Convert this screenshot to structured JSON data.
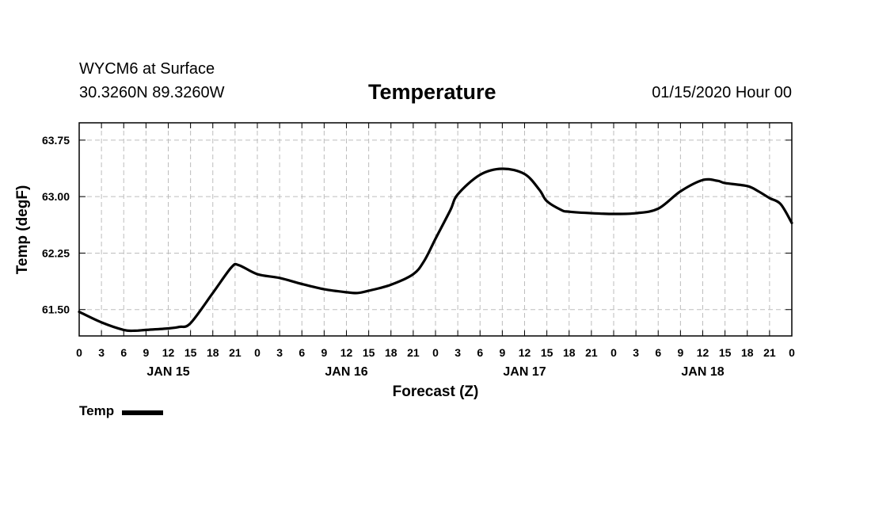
{
  "header": {
    "station": "WYCM6 at Surface",
    "coords": "30.3260N 89.3260W",
    "runtime": "01/15/2020 Hour 00"
  },
  "legend": {
    "label": "Temp"
  },
  "chart_data": {
    "type": "line",
    "title": "Temperature",
    "xlabel": "Forecast (Z)",
    "ylabel": "Temp (degF)",
    "ylim": [
      61.15,
      63.98
    ],
    "xlim": [
      0,
      96
    ],
    "yticks": [
      61.5,
      62.25,
      63.0,
      63.75
    ],
    "ytick_labels": [
      "61.50",
      "62.25",
      "63.00",
      "63.75"
    ],
    "xtick_hours": [
      0,
      3,
      6,
      9,
      12,
      15,
      18,
      21,
      24,
      27,
      30,
      33,
      36,
      39,
      42,
      45,
      48,
      51,
      54,
      57,
      60,
      63,
      66,
      69,
      72,
      75,
      78,
      81,
      84,
      87,
      90,
      93,
      96
    ],
    "xtick_labels": [
      "0",
      "3",
      "6",
      "9",
      "12",
      "15",
      "18",
      "21",
      "0",
      "3",
      "6",
      "9",
      "12",
      "15",
      "18",
      "21",
      "0",
      "3",
      "6",
      "9",
      "12",
      "15",
      "18",
      "21",
      "0",
      "3",
      "6",
      "9",
      "12",
      "15",
      "18",
      "21",
      "0"
    ],
    "date_labels": [
      {
        "hour": 12,
        "label": "JAN 15"
      },
      {
        "hour": 36,
        "label": "JAN 16"
      },
      {
        "hour": 60,
        "label": "JAN 17"
      },
      {
        "hour": 84,
        "label": "JAN 18"
      }
    ],
    "grid": true,
    "series": [
      {
        "name": "Temp",
        "color": "#000000",
        "x": [
          0,
          3,
          6,
          7.5,
          9,
          12,
          13.5,
          15,
          18,
          20.5,
          21.5,
          24,
          27,
          30,
          33,
          36,
          37.5,
          39,
          42,
          45,
          46.5,
          48,
          50,
          51,
          54,
          57,
          60,
          62,
          63,
          65,
          66,
          69,
          72,
          75,
          78,
          81,
          84,
          86,
          87,
          90,
          91.5,
          93,
          94.5,
          96
        ],
        "y": [
          61.47,
          61.33,
          61.23,
          61.22,
          61.23,
          61.25,
          61.27,
          61.32,
          61.72,
          62.06,
          62.09,
          61.97,
          61.92,
          61.84,
          61.77,
          61.73,
          61.72,
          61.75,
          61.83,
          61.97,
          62.15,
          62.44,
          62.82,
          63.03,
          63.29,
          63.37,
          63.3,
          63.09,
          62.94,
          62.82,
          62.8,
          62.78,
          62.77,
          62.78,
          62.84,
          63.07,
          63.22,
          63.21,
          63.18,
          63.14,
          63.07,
          62.98,
          62.9,
          62.65
        ]
      }
    ]
  }
}
